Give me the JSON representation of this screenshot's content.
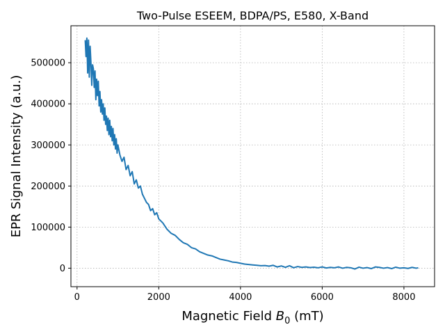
{
  "chart_data": {
    "type": "line",
    "title": "Two-Pulse ESEEM, BDPA/PS, E580, X-Band",
    "xlabel": "Magnetic Field B0 (mT)",
    "xlabel_main": "Magnetic Field ",
    "xlabel_symbol": "B",
    "xlabel_subscript": "0",
    "xlabel_unit": " (mT)",
    "ylabel": "EPR Signal Intensity (a.u.)",
    "xlim": [
      -150,
      8750
    ],
    "ylim": [
      -45000,
      590000
    ],
    "xticks": [
      0,
      2000,
      4000,
      6000,
      8000
    ],
    "xtick_labels": [
      "0",
      "2000",
      "4000",
      "6000",
      "8000"
    ],
    "yticks": [
      0,
      100000,
      200000,
      300000,
      400000,
      500000
    ],
    "ytick_labels": [
      "0",
      "100000",
      "200000",
      "300000",
      "400000",
      "500000"
    ],
    "grid": true,
    "line_color": "#1f77b4",
    "series": [
      {
        "x": [
          200,
          220,
          240,
          260,
          280,
          300,
          320,
          340,
          360,
          380,
          400,
          420,
          440,
          460,
          480,
          500,
          520,
          540,
          560,
          580,
          600,
          620,
          640,
          660,
          680,
          700,
          720,
          740,
          760,
          780,
          800,
          820,
          840,
          860,
          880,
          900,
          920,
          940,
          960,
          980,
          1000,
          1050,
          1100,
          1150,
          1200,
          1250,
          1300,
          1350,
          1400,
          1450,
          1500,
          1550,
          1600,
          1650,
          1700,
          1750,
          1800,
          1850,
          1900,
          1950,
          2000,
          2100,
          2200,
          2300,
          2400,
          2500,
          2600,
          2700,
          2800,
          2900,
          3000,
          3100,
          3200,
          3300,
          3400,
          3500,
          3600,
          3700,
          3800,
          3900,
          4000,
          4100,
          4200,
          4300,
          4400,
          4500,
          4600,
          4700,
          4800,
          4900,
          5000,
          5100,
          5200,
          5300,
          5400,
          5500,
          5600,
          5700,
          5800,
          5900,
          6000,
          6100,
          6200,
          6300,
          6400,
          6500,
          6600,
          6700,
          6800,
          6900,
          7000,
          7100,
          7200,
          7300,
          7400,
          7500,
          7600,
          7700,
          7800,
          7900,
          8000,
          8100,
          8200,
          8300,
          8350
        ],
        "y": [
          555000,
          515000,
          560000,
          475000,
          555000,
          465000,
          540000,
          500000,
          445000,
          495000,
          485000,
          440000,
          480000,
          410000,
          460000,
          420000,
          455000,
          395000,
          430000,
          380000,
          410000,
          375000,
          400000,
          360000,
          390000,
          350000,
          370000,
          335000,
          365000,
          325000,
          360000,
          320000,
          345000,
          310000,
          340000,
          300000,
          325000,
          290000,
          315000,
          280000,
          300000,
          275000,
          260000,
          270000,
          240000,
          250000,
          225000,
          235000,
          205000,
          215000,
          195000,
          200000,
          180000,
          170000,
          160000,
          155000,
          140000,
          145000,
          130000,
          135000,
          120000,
          110000,
          95000,
          85000,
          80000,
          70000,
          62000,
          58000,
          50000,
          47000,
          40000,
          36000,
          32000,
          30000,
          26000,
          22000,
          20000,
          18000,
          15000,
          14000,
          12000,
          10000,
          9000,
          8000,
          7000,
          6000,
          6500,
          5000,
          7000,
          3000,
          5500,
          2000,
          6000,
          1000,
          4000,
          2000,
          3000,
          1500,
          2500,
          1000,
          3000,
          500,
          2000,
          1000,
          3000,
          0,
          2000,
          1000,
          -2000,
          2500,
          0,
          1500,
          -1000,
          3000,
          2000,
          0,
          1500,
          -1000,
          2500,
          0,
          1000,
          -500,
          2000,
          0,
          1000
        ]
      }
    ]
  }
}
